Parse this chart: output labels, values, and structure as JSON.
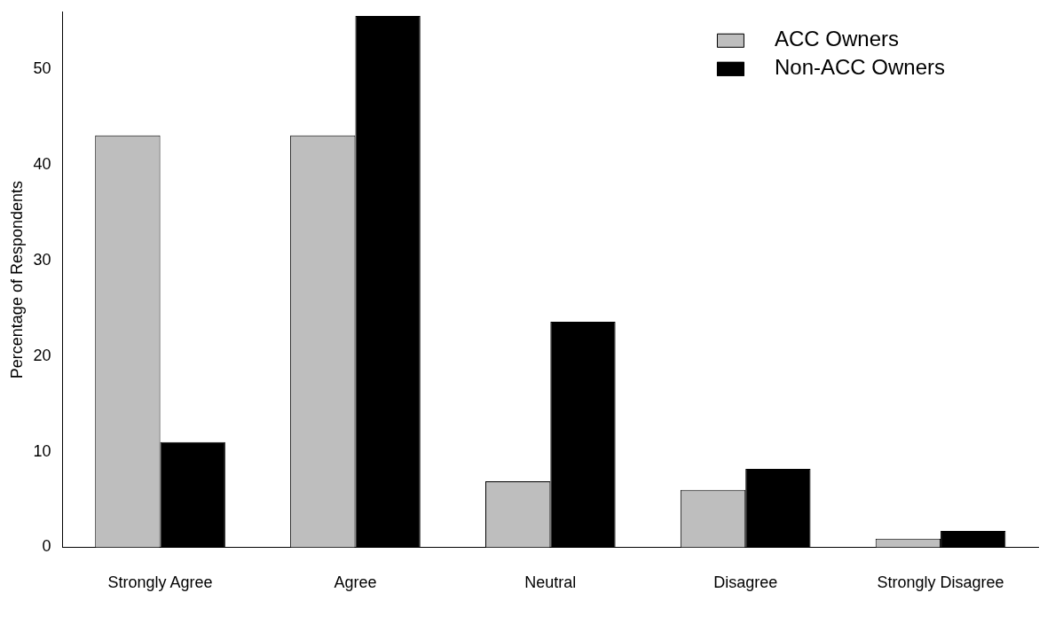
{
  "chart_data": {
    "type": "bar",
    "ylabel": "Percentage of Respondents",
    "categories": [
      "Strongly Agree",
      "Agree",
      "Neutral",
      "Disagree",
      "Strongly Disagree"
    ],
    "series": [
      {
        "name": "ACC Owners",
        "color": "#bebebe",
        "values": [
          43.1,
          43.1,
          6.9,
          6.0,
          0.9
        ]
      },
      {
        "name": "Non-ACC Owners",
        "color": "#000000",
        "values": [
          11.0,
          55.6,
          23.6,
          8.2,
          1.7
        ]
      }
    ],
    "ylim": [
      0,
      56
    ],
    "yticks": [
      0,
      10,
      20,
      30,
      40,
      50
    ],
    "grid": false,
    "legend": "top right"
  }
}
